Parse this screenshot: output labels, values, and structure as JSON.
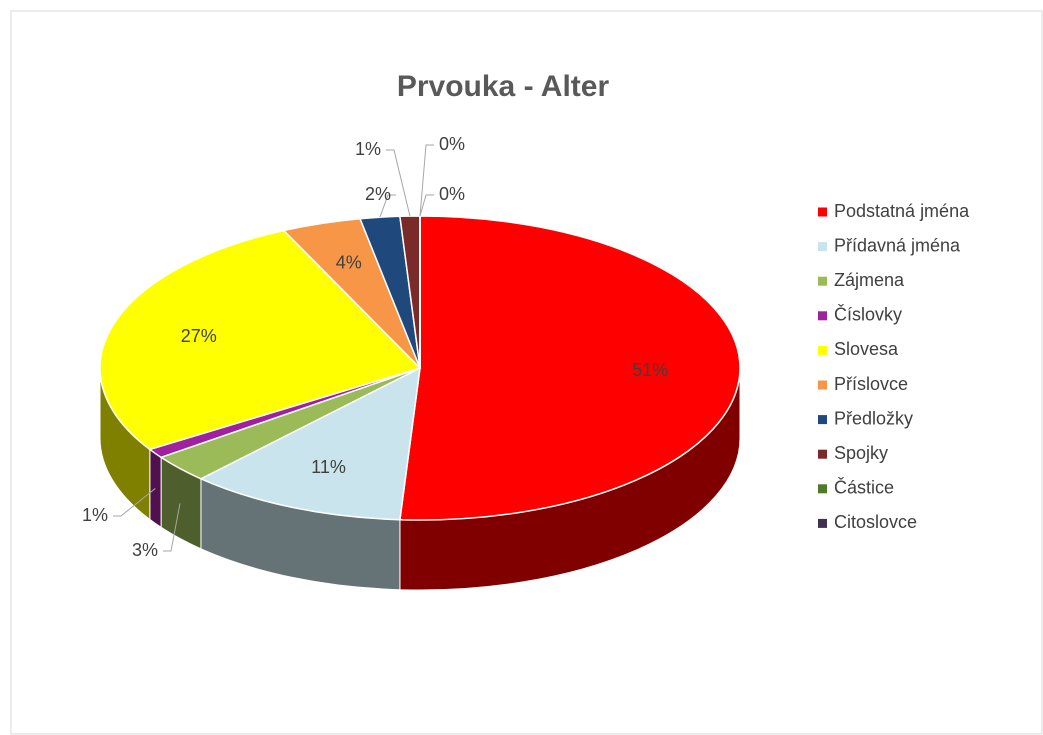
{
  "chart_data": {
    "type": "pie3d",
    "title": "Prvouka - Alter",
    "categories": [
      "Podstatná jména",
      "Přídavná jména",
      "Zájmena",
      "Číslovky",
      "Slovesa",
      "Příslovce",
      "Předložky",
      "Spojky",
      "Částice",
      "Citoslovce"
    ],
    "values": [
      51,
      11,
      3,
      1,
      27,
      4,
      2,
      1,
      0,
      0
    ],
    "value_labels": [
      "51%",
      "11%",
      "3%",
      "1%",
      "27%",
      "4%",
      "2%",
      "1%",
      "0%",
      "0%"
    ],
    "colors": [
      "#ff0000",
      "#c9e4ec",
      "#9bbb59",
      "#a0219e",
      "#ffff00",
      "#f79646",
      "#1f497d",
      "#7b2a2a",
      "#4f7a28",
      "#403152"
    ],
    "legend": "right"
  }
}
